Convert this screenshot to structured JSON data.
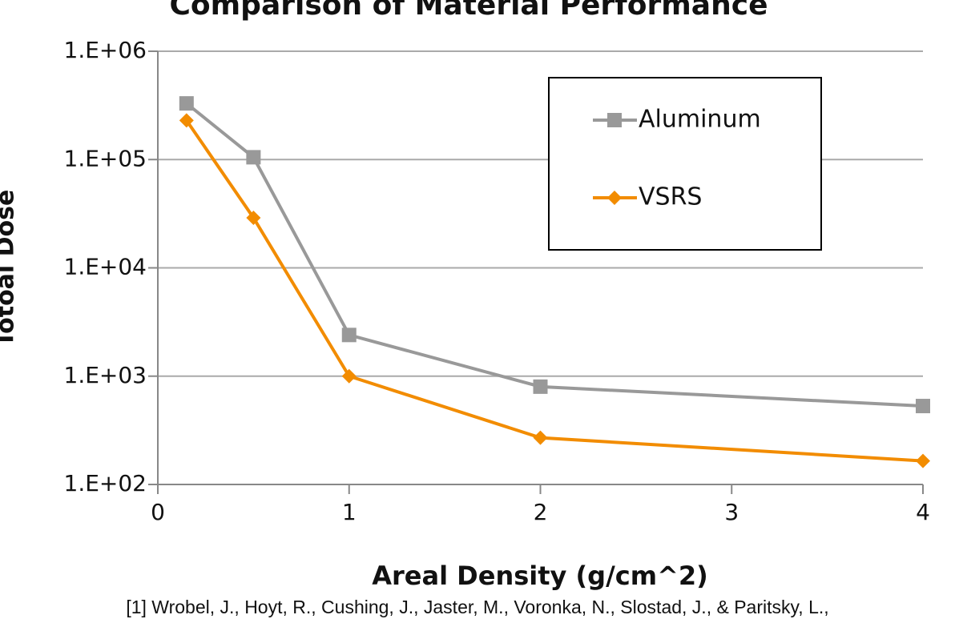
{
  "chart_data": {
    "type": "line",
    "title": "Comparison of Material Performance",
    "x_label": "Areal Density (g/cm^2)",
    "y_label": "Totoal Dose",
    "caption": "[1] Wrobel, J., Hoyt, R., Cushing, J., Jaster, M., Voronka, N., Slostad, J., & Paritsky, L.,",
    "x": [
      0.15,
      0.5,
      1,
      2,
      4
    ],
    "series": [
      {
        "name": "Aluminum",
        "color": "#999999",
        "marker": "square",
        "values": [
          330000,
          105000,
          2400,
          800,
          530
        ]
      },
      {
        "name": "VSRS",
        "color": "#f28c00",
        "marker": "diamond",
        "values": [
          230000,
          29000,
          1000,
          270,
          165
        ]
      }
    ],
    "xlim": [
      0,
      4
    ],
    "xticks": [
      0,
      1,
      2,
      3,
      4
    ],
    "ylim": [
      100,
      1000000
    ],
    "log_y": true,
    "yticks": [
      {
        "value": 100,
        "label": "1.E+02"
      },
      {
        "value": 1000,
        "label": "1.E+03"
      },
      {
        "value": 10000,
        "label": "1.E+04"
      },
      {
        "value": 100000,
        "label": "1.E+05"
      },
      {
        "value": 1000000,
        "label": "1.E+06"
      }
    ],
    "grid": true,
    "legend": "upper right"
  }
}
